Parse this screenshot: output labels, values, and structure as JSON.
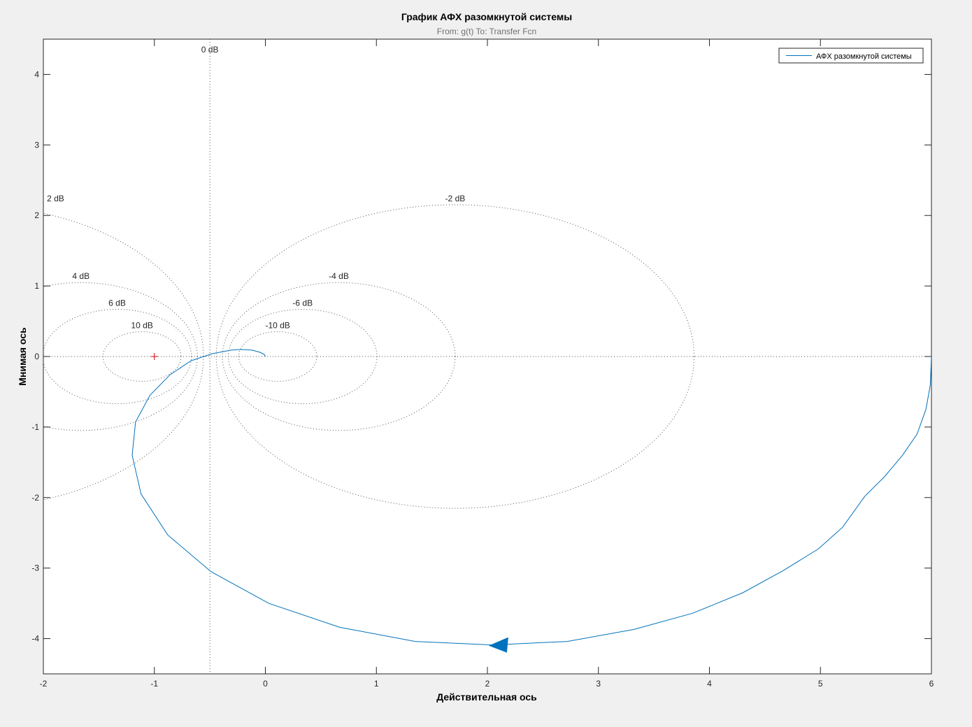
{
  "figure": {
    "title": "График АФХ разомкнутой системы",
    "subtitle": "From: g(t)  To: Transfer Fcn"
  },
  "chart_data": {
    "type": "line",
    "title": "График АФХ разомкнутой системы",
    "subtitle": "From: g(t)  To: Transfer Fcn",
    "xlabel": "Действительная ось",
    "ylabel": "Мнимая ось",
    "xlim": [
      -2,
      6
    ],
    "ylim": [
      -4.5,
      4.5
    ],
    "xticks": [
      -2,
      -1,
      0,
      1,
      2,
      3,
      4,
      5,
      6
    ],
    "yticks": [
      -4,
      -3,
      -2,
      -1,
      0,
      1,
      2,
      3,
      4
    ],
    "grid": "M-circles (dotted)",
    "legend": {
      "position": "top-right",
      "entries": [
        "АФХ разомкнутой системы"
      ]
    },
    "colors": {
      "series": "#0072bd",
      "grid": "#555555",
      "critical_point": "#d00000",
      "axes_bg": "#ffffff",
      "figure_bg": "#f0f0f0"
    },
    "critical_point": {
      "x": -1,
      "y": 0,
      "marker": "+"
    },
    "m_circles": [
      {
        "label": "0 dB",
        "db": 0
      },
      {
        "label": "2 dB",
        "db": 2
      },
      {
        "label": "4 dB",
        "db": 4
      },
      {
        "label": "6 dB",
        "db": 6
      },
      {
        "label": "10 dB",
        "db": 10
      },
      {
        "label": "-2 dB",
        "db": -2
      },
      {
        "label": "-4 dB",
        "db": -4
      },
      {
        "label": "-6 dB",
        "db": -6
      },
      {
        "label": "-10 dB",
        "db": -10
      }
    ],
    "series": [
      {
        "name": "АФХ разомкнутой системы",
        "points": [
          [
            6.0,
            0.0
          ],
          [
            5.99,
            -0.4
          ],
          [
            5.95,
            -0.75
          ],
          [
            5.87,
            -1.1
          ],
          [
            5.74,
            -1.4
          ],
          [
            5.58,
            -1.7
          ],
          [
            5.4,
            -1.98
          ],
          [
            5.2,
            -2.42
          ],
          [
            4.98,
            -2.73
          ],
          [
            4.66,
            -3.04
          ],
          [
            4.3,
            -3.35
          ],
          [
            3.85,
            -3.64
          ],
          [
            3.32,
            -3.87
          ],
          [
            2.72,
            -4.04
          ],
          [
            2.05,
            -4.09
          ],
          [
            1.35,
            -4.04
          ],
          [
            0.67,
            -3.84
          ],
          [
            0.03,
            -3.5
          ],
          [
            -0.49,
            -3.05
          ],
          [
            -0.88,
            -2.53
          ],
          [
            -1.12,
            -1.95
          ],
          [
            -1.2,
            -1.4
          ],
          [
            -1.17,
            -0.93
          ],
          [
            -1.04,
            -0.55
          ],
          [
            -0.86,
            -0.26
          ],
          [
            -0.67,
            -0.06
          ],
          [
            -0.48,
            0.04
          ],
          [
            -0.31,
            0.09
          ],
          [
            -0.22,
            0.1
          ],
          [
            -0.12,
            0.09
          ],
          [
            -0.05,
            0.06
          ],
          [
            -0.01,
            0.03
          ],
          [
            0.0,
            0.0
          ]
        ]
      }
    ],
    "arrow": {
      "x": 2.1,
      "y": -4.09,
      "direction": "left"
    }
  }
}
